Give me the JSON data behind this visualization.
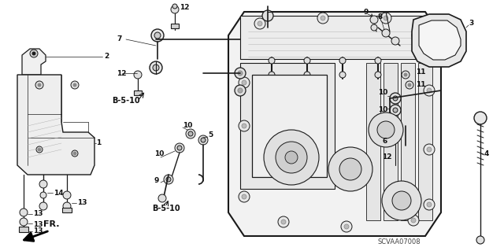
{
  "background_color": "#ffffff",
  "line_color": "#1a1a1a",
  "label_color": "#111111",
  "label_fontsize": 6.5,
  "part_code": "SCVAA07008",
  "fr_text": "FR.",
  "b510_text": "B-5-10"
}
